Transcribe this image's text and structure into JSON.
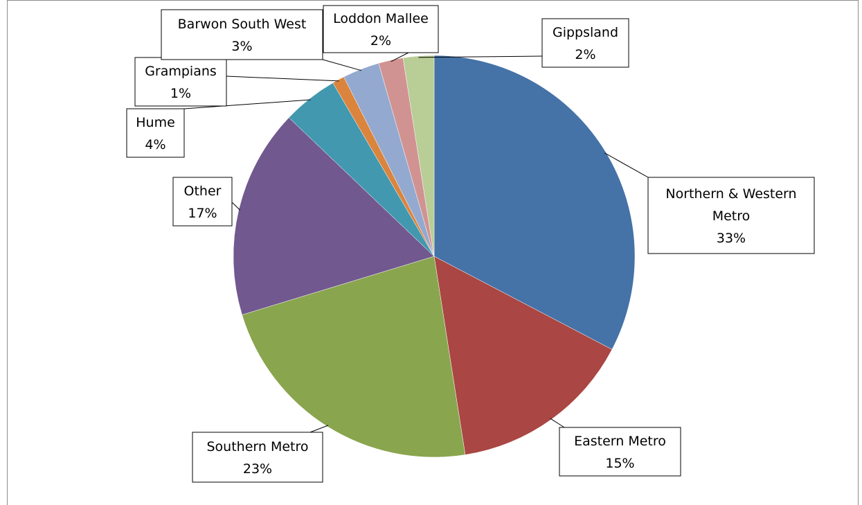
{
  "chart_data": {
    "type": "pie",
    "start_angle_deg": 0,
    "direction": "clockwise",
    "slices": [
      {
        "name": "Northern & Western Metro",
        "label_lines": [
          "Northern & Western",
          "Metro"
        ],
        "value": 33,
        "percent_label": "33%",
        "color": "#4572a7"
      },
      {
        "name": "Eastern Metro",
        "label_lines": [
          "Eastern Metro"
        ],
        "value": 15,
        "percent_label": "15%",
        "color": "#aa4643"
      },
      {
        "name": "Southern Metro",
        "label_lines": [
          "Southern Metro"
        ],
        "value": 23,
        "percent_label": "23%",
        "color": "#89a54e"
      },
      {
        "name": "Other",
        "label_lines": [
          "Other"
        ],
        "value": 17,
        "percent_label": "17%",
        "color": "#71588f"
      },
      {
        "name": "Hume",
        "label_lines": [
          "Hume"
        ],
        "value": 4.5,
        "percent_label": "4%",
        "color": "#4198af"
      },
      {
        "name": "Grampians",
        "label_lines": [
          "Grampians"
        ],
        "value": 1,
        "percent_label": "1%",
        "color": "#db843d"
      },
      {
        "name": "Barwon South West",
        "label_lines": [
          "Barwon South West"
        ],
        "value": 3,
        "percent_label": "3%",
        "color": "#93a9cf"
      },
      {
        "name": "Loddon Mallee",
        "label_lines": [
          "Loddon Mallee"
        ],
        "value": 2,
        "percent_label": "2%",
        "color": "#d19392"
      },
      {
        "name": "Gippsland",
        "label_lines": [
          "Gippsland"
        ],
        "value": 2.5,
        "percent_label": "2%",
        "color": "#b9cd96"
      }
    ]
  }
}
